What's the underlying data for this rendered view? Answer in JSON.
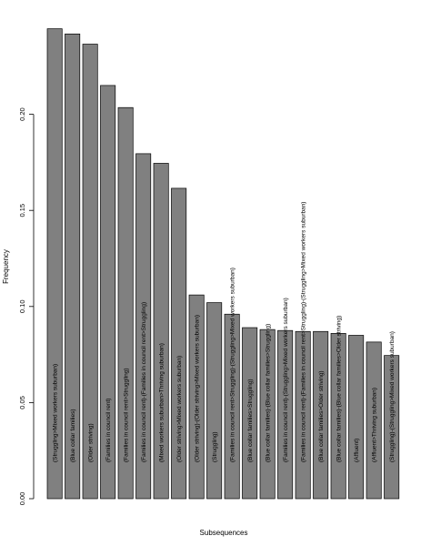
{
  "chart_data": {
    "type": "bar",
    "xlabel": "Subsequences",
    "ylabel": "Frequency",
    "ylim": [
      0,
      0.25
    ],
    "yticks": [
      "0.00",
      "0.05",
      "0.10",
      "0.15",
      "0.20"
    ],
    "ytick_values": [
      0,
      0.05,
      0.1,
      0.15,
      0.2
    ],
    "grid": false,
    "bar_color": "#808080",
    "categories": [
      "(Struggling>Mixed workers suburban)",
      "(Blue collar families)",
      "(Older striving)",
      "(Families in council rent)",
      "(Families in council rent>Struggling)",
      "(Families in council rent)-(Families in council rent>Struggling)",
      "(Mixed workers suburban>Thriving suburban)",
      "(Older striving>Mixed workers suburban)",
      "(Older striving)-(Older striving>Mixed workers suburban)",
      "(Struggling)",
      "(Families in council rent>Struggling)-(Struggling>Mixed workers suburban)",
      "(Blue collar families>Struggling)",
      "(Blue collar families)-(Blue collar families>Struggling)",
      "(Families in council rent)-(Struggling>Mixed workers suburban)",
      "(Families in council rent)-(Families in council rent>Struggling)-(Struggling>Mixed workers suburban)",
      "(Blue collar families>Older striving)",
      "(Blue collar families)-(Blue collar families>Older striving)",
      "(Affluent)",
      "(Affluent>Thriving suburban)",
      "(Struggling)-(Struggling>Mixed workers suburban)"
    ],
    "values": [
      0.2445,
      0.2418,
      0.2365,
      0.215,
      0.2035,
      0.1795,
      0.1745,
      0.1615,
      0.106,
      0.102,
      0.096,
      0.089,
      0.088,
      0.0875,
      0.087,
      0.087,
      0.086,
      0.085,
      0.0815,
      0.0745
    ]
  }
}
